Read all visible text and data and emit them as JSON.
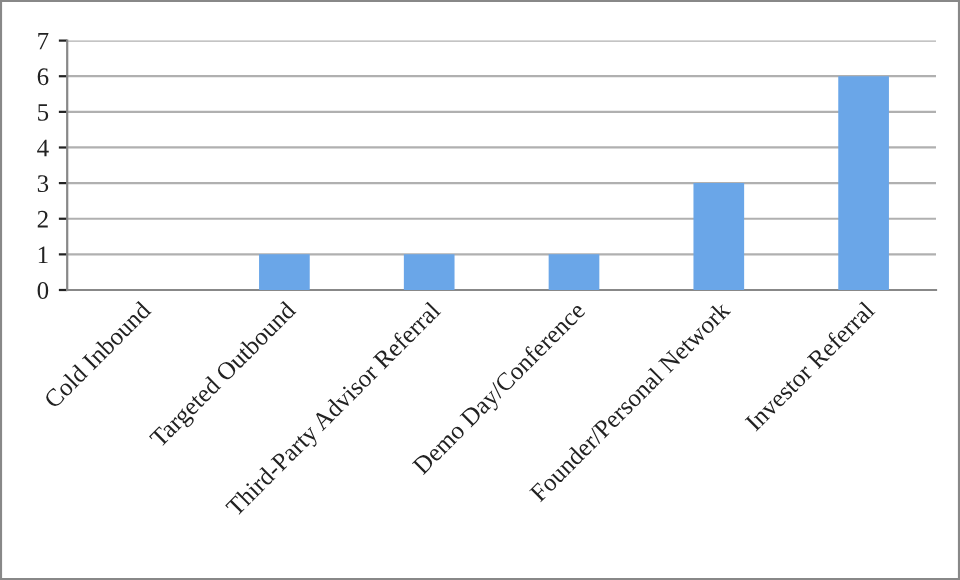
{
  "chart_data": {
    "type": "bar",
    "categories": [
      "Cold Inbound",
      "Targeted Outbound",
      "Third-Party Advisor Referral",
      "Demo Day/Conference",
      "Founder/Personal Network",
      "Investor Referral"
    ],
    "values": [
      0,
      1,
      1,
      1,
      3,
      6
    ],
    "color": "#6aa6e8",
    "ylim": [
      0,
      7
    ],
    "yticks": [
      0,
      1,
      2,
      3,
      4,
      5,
      6,
      7
    ],
    "grid": "y"
  }
}
